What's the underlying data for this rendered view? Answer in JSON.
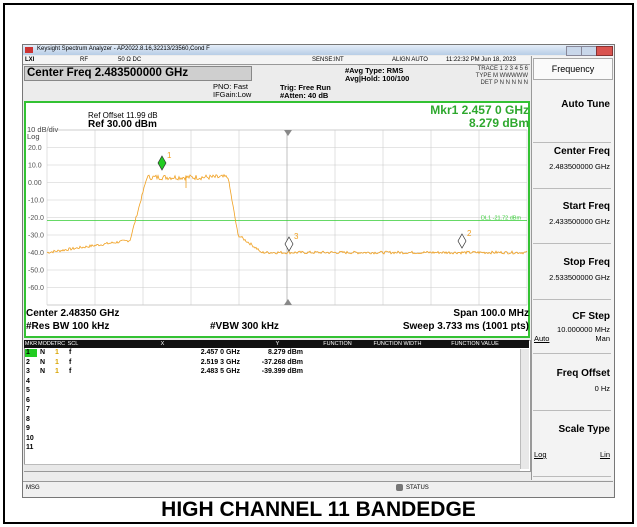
{
  "caption": "HIGH CHANNEL 11 BANDEDGE",
  "window": {
    "title": "Keysight Spectrum Analyzer - AP2022.8.16,32213/23560,Cond F",
    "toolbar": [
      "LXI",
      "RF",
      "50 Ω  DC",
      "SENSE:INT",
      "ALIGN AUTO",
      "11:22:32 PM Jun 18, 2023"
    ],
    "center_freq": "Center Freq 2.483500000 GHz",
    "pno": "PNO: Fast",
    "ifgain": "IFGain:Low",
    "trig": "Trig: Free Run",
    "atten": "#Atten: 40 dB",
    "avg_type": "#Avg Type: RMS",
    "avg_hold": "Avg|Hold: 100/100",
    "trace_rows": [
      "TRACE 1 2 3 4 5 6",
      "TYPE M WWWWW",
      "DET P N N N N N"
    ]
  },
  "graph": {
    "ref_offset": "Ref Offset 11.99 dB",
    "scale": "10 dB/div",
    "ref_level": "Ref 30.00 dBm",
    "log": "Log",
    "marker_freq": "Mkr1 2.457 0 GHz",
    "marker_level": "8.279 dBm",
    "y_labels": [
      "20.0",
      "10.0",
      "0.00",
      "-10.0",
      "-20.0",
      "-30.0",
      "-40.0",
      "-50.0",
      "-60.0"
    ],
    "display_line": "DL1 -21.72 dBm",
    "marker_tags": [
      "1",
      "2",
      "3"
    ],
    "center": "Center 2.48350 GHz",
    "span": "Span 100.0 MHz",
    "rbw": "#Res BW 100 kHz",
    "vbw": "#VBW 300 kHz",
    "sweep": "Sweep 3.733 ms (1001 pts)"
  },
  "table": {
    "headers": [
      "MKR",
      "MODE",
      "TRC",
      "SCL",
      "X",
      "Y",
      "FUNCTION",
      "FUNCTION WIDTH",
      "FUNCTION VALUE"
    ],
    "rows": [
      [
        "1",
        "N",
        "1",
        "f",
        "2.457 0 GHz",
        "8.279 dBm"
      ],
      [
        "2",
        "N",
        "1",
        "f",
        "2.519 3 GHz",
        "-37.268 dBm"
      ],
      [
        "3",
        "N",
        "1",
        "f",
        "2.483 5 GHz",
        "-39.399 dBm"
      ],
      [
        "4"
      ],
      [
        "5"
      ],
      [
        "6"
      ],
      [
        "7"
      ],
      [
        "8"
      ],
      [
        "9"
      ],
      [
        "10"
      ],
      [
        "11"
      ]
    ]
  },
  "status": {
    "msg": "MSG",
    "status": "STATUS"
  },
  "panel": {
    "header": "Frequency",
    "softkeys": [
      {
        "label": "Auto Tune"
      },
      {
        "label": "Center Freq",
        "value": "2.483500000 GHz"
      },
      {
        "label": "Start Freq",
        "value": "2.433500000 GHz"
      },
      {
        "label": "Stop Freq",
        "value": "2.533500000 GHz"
      },
      {
        "label": "CF Step",
        "value": "10.000000 MHz",
        "left": "Auto",
        "right": "Man"
      },
      {
        "label": "Freq Offset",
        "value": "0 Hz"
      },
      {
        "label": "Scale Type",
        "left": "Log",
        "right": "Lin"
      }
    ]
  }
}
